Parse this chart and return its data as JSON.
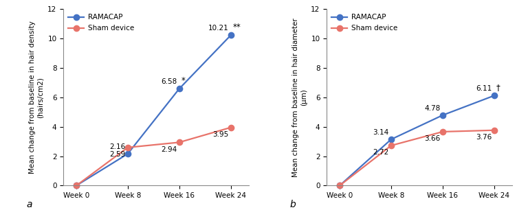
{
  "panel_a": {
    "title": "a",
    "ylabel_line1": "Mean change from baseline in hair density",
    "ylabel_line2": "(hairs/cm2)",
    "xlabel_ticks": [
      "Week 0",
      "Week 8",
      "Week 16",
      "Week 24"
    ],
    "ramacap_values": [
      0,
      2.16,
      6.58,
      10.21
    ],
    "sham_values": [
      0,
      2.59,
      2.94,
      3.95
    ],
    "ramacap_labels": [
      "",
      "2.16",
      "6.58",
      "10.21"
    ],
    "sham_labels": [
      "",
      "2.59",
      "2.94",
      "3.95"
    ],
    "ramacap_annot": [
      "",
      "",
      "*",
      "**"
    ],
    "ylim": [
      0,
      12
    ],
    "yticks": [
      0,
      2,
      4,
      6,
      8,
      10,
      12
    ]
  },
  "panel_b": {
    "title": "b",
    "ylabel_line1": "Mean change from baseline in hair diameter",
    "ylabel_line2": "(μm)",
    "xlabel_ticks": [
      "Week 0",
      "Week 8",
      "Week 16",
      "Week 24"
    ],
    "ramacap_values": [
      0,
      3.14,
      4.78,
      6.11
    ],
    "sham_values": [
      0,
      2.72,
      3.66,
      3.76
    ],
    "ramacap_labels": [
      "",
      "3.14",
      "4.78",
      "6.11"
    ],
    "sham_labels": [
      "",
      "2.72",
      "3.66",
      "3.76"
    ],
    "ramacap_annot": [
      "",
      "",
      "",
      "†"
    ],
    "ylim": [
      0,
      12
    ],
    "yticks": [
      0,
      2,
      4,
      6,
      8,
      10,
      12
    ]
  },
  "ramacap_color": "#4472C4",
  "sham_color": "#E8736A",
  "legend_ramacap": "RAMACAP",
  "legend_sham": "Sham device",
  "marker": "o",
  "linewidth": 1.6,
  "markersize": 6,
  "label_fontsize": 7.5,
  "tick_fontsize": 7.5,
  "ylabel_fontsize": 7.5,
  "annot_fontsize": 8.5,
  "panel_label_fontsize": 10
}
